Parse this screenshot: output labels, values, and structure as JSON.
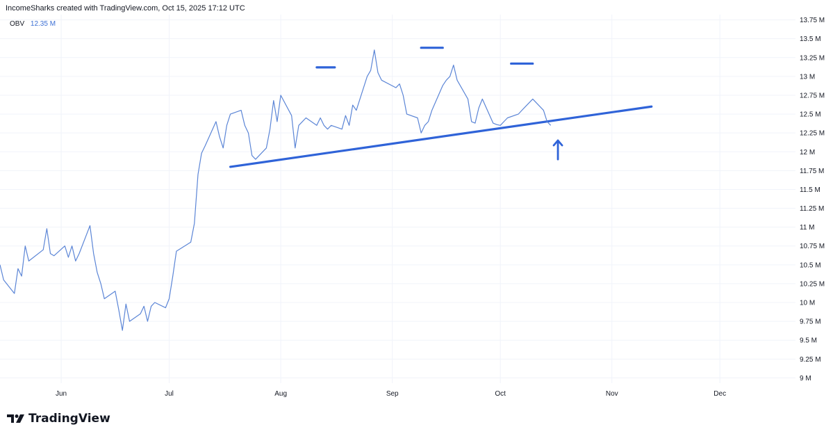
{
  "header": {
    "attribution": "IncomeSharks created with TradingView.com, Oct 15, 2025 17:12 UTC"
  },
  "legend": {
    "indicator": "OBV",
    "value": "12.35 M"
  },
  "brand": {
    "name": "TradingView"
  },
  "colors": {
    "line": "#5b85d6",
    "annotation": "#2f63d8",
    "grid": "#f0f3fa",
    "text": "#131722"
  },
  "chart_data": {
    "type": "line",
    "series": [
      {
        "name": "OBV",
        "x": [
          "2025-05-15",
          "2025-05-16",
          "2025-05-19",
          "2025-05-20",
          "2025-05-21",
          "2025-05-22",
          "2025-05-23",
          "2025-05-27",
          "2025-05-28",
          "2025-05-29",
          "2025-05-30",
          "2025-06-02",
          "2025-06-03",
          "2025-06-04",
          "2025-06-05",
          "2025-06-06",
          "2025-06-09",
          "2025-06-10",
          "2025-06-11",
          "2025-06-12",
          "2025-06-13",
          "2025-06-16",
          "2025-06-17",
          "2025-06-18",
          "2025-06-19",
          "2025-06-20",
          "2025-06-23",
          "2025-06-24",
          "2025-06-25",
          "2025-06-26",
          "2025-06-27",
          "2025-06-30",
          "2025-07-01",
          "2025-07-02",
          "2025-07-03",
          "2025-07-07",
          "2025-07-08",
          "2025-07-09",
          "2025-07-10",
          "2025-07-11",
          "2025-07-14",
          "2025-07-15",
          "2025-07-16",
          "2025-07-17",
          "2025-07-18",
          "2025-07-21",
          "2025-07-22",
          "2025-07-23",
          "2025-07-24",
          "2025-07-25",
          "2025-07-28",
          "2025-07-29",
          "2025-07-30",
          "2025-07-31",
          "2025-08-01",
          "2025-08-04",
          "2025-08-05",
          "2025-08-06",
          "2025-08-07",
          "2025-08-08",
          "2025-08-11",
          "2025-08-12",
          "2025-08-13",
          "2025-08-14",
          "2025-08-15",
          "2025-08-18",
          "2025-08-19",
          "2025-08-20",
          "2025-08-21",
          "2025-08-22",
          "2025-08-25",
          "2025-08-26",
          "2025-08-27",
          "2025-08-28",
          "2025-08-29",
          "2025-09-02",
          "2025-09-03",
          "2025-09-04",
          "2025-09-05",
          "2025-09-08",
          "2025-09-09",
          "2025-09-10",
          "2025-09-11",
          "2025-09-12",
          "2025-09-15",
          "2025-09-16",
          "2025-09-17",
          "2025-09-18",
          "2025-09-19",
          "2025-09-22",
          "2025-09-23",
          "2025-09-24",
          "2025-09-25",
          "2025-09-26",
          "2025-09-29",
          "2025-09-30",
          "2025-10-01",
          "2025-10-02",
          "2025-10-03",
          "2025-10-06",
          "2025-10-07",
          "2025-10-08",
          "2025-10-09",
          "2025-10-10",
          "2025-10-13",
          "2025-10-14",
          "2025-10-15"
        ],
        "values": [
          10.5,
          10.3,
          10.12,
          10.45,
          10.35,
          10.75,
          10.55,
          10.7,
          10.98,
          10.65,
          10.62,
          10.75,
          10.6,
          10.75,
          10.55,
          10.65,
          11.02,
          10.65,
          10.4,
          10.25,
          10.05,
          10.15,
          9.9,
          9.63,
          9.98,
          9.75,
          9.85,
          9.95,
          9.75,
          9.95,
          10.0,
          9.93,
          10.05,
          10.35,
          10.68,
          10.8,
          11.05,
          11.7,
          11.98,
          12.08,
          12.4,
          12.2,
          12.05,
          12.35,
          12.5,
          12.55,
          12.35,
          12.25,
          11.95,
          11.9,
          12.05,
          12.3,
          12.68,
          12.4,
          12.75,
          12.48,
          12.05,
          12.35,
          12.4,
          12.45,
          12.35,
          12.45,
          12.35,
          12.3,
          12.35,
          12.3,
          12.48,
          12.35,
          12.62,
          12.55,
          13.0,
          13.08,
          13.35,
          13.05,
          12.95,
          12.85,
          12.9,
          12.75,
          12.5,
          12.45,
          12.25,
          12.35,
          12.4,
          12.55,
          12.88,
          12.95,
          13.0,
          13.15,
          12.95,
          12.7,
          12.4,
          12.38,
          12.58,
          12.7,
          12.38,
          12.36,
          12.35,
          12.4,
          12.45,
          12.5,
          12.55,
          12.6,
          12.65,
          12.7,
          12.55,
          12.4,
          12.35
        ]
      }
    ],
    "y_ticks": [
      "9 M",
      "9.25 M",
      "9.5 M",
      "9.75 M",
      "10 M",
      "10.25 M",
      "10.5 M",
      "10.75 M",
      "11 M",
      "11.25 M",
      "11.5 M",
      "11.75 M",
      "12 M",
      "12.25 M",
      "12.5 M",
      "12.75 M",
      "13 M",
      "13.25 M",
      "13.5 M",
      "13.75 M"
    ],
    "y_tick_values": [
      9,
      9.25,
      9.5,
      9.75,
      10,
      10.25,
      10.5,
      10.75,
      11,
      11.25,
      11.5,
      11.75,
      12,
      12.25,
      12.5,
      12.75,
      13,
      13.25,
      13.5,
      13.75
    ],
    "x_ticks": [
      "Jun",
      "Jul",
      "Aug",
      "Sep",
      "Oct",
      "Nov",
      "Dec"
    ],
    "x_tick_dates": [
      "2025-06-01",
      "2025-07-01",
      "2025-08-01",
      "2025-09-01",
      "2025-10-01",
      "2025-11-01",
      "2025-12-01"
    ],
    "xlim": [
      "2025-05-15",
      "2025-12-22"
    ],
    "ylim": [
      8.93,
      13.82
    ],
    "grid": true,
    "annotations": {
      "trendline": {
        "from": {
          "x": "2025-07-18",
          "y": 11.8
        },
        "to": {
          "x": "2025-11-12",
          "y": 12.6
        }
      },
      "peak_markers": [
        {
          "x_start": "2025-08-11",
          "x_end": "2025-08-16",
          "y": 13.12
        },
        {
          "x_start": "2025-09-09",
          "x_end": "2025-09-15",
          "y": 13.38
        },
        {
          "x_start": "2025-10-04",
          "x_end": "2025-10-10",
          "y": 13.17
        }
      ],
      "arrow": {
        "x": "2025-10-17",
        "y_tip": 12.15,
        "y_tail": 11.9,
        "direction": "up"
      }
    }
  }
}
